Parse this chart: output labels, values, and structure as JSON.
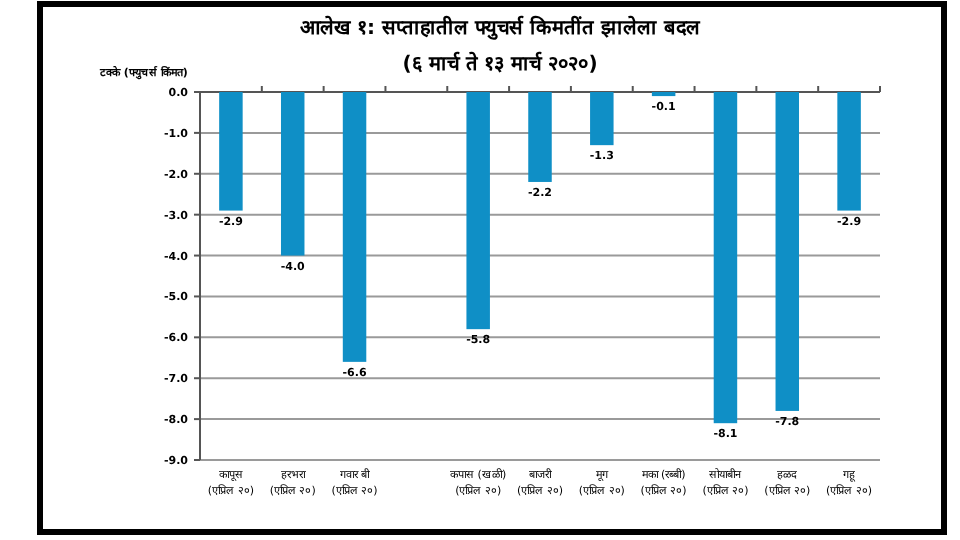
{
  "chart_data": {
    "type": "bar",
    "title": "आलेख १: सप्ताहातील फ्युचर्स किमतींत झालेला बदल",
    "subtitle": "(६ मार्च ते १३ मार्च २०२०)",
    "ylabel": "टक्के (फ्युचर्स किंमत)",
    "categories": [
      "कापूस\n(एप्रिल २०)",
      "हरभरा\n(एप्रिल २०)",
      "गवार बी\n(एप्रिल २०)",
      null,
      "कपास (खळी)\n(एप्रिल २०)",
      "बाजरी\n(एप्रिल २०)",
      "मूग\n(एप्रिल २०)",
      "मका (रब्बी)\n(एप्रिल २०)",
      "सोयाबीन\n(एप्रिल २०)",
      "हळद\n(एप्रिल २०)",
      "गहू\n(एप्रिल २०)"
    ],
    "values": [
      -2.9,
      -4.0,
      -6.6,
      null,
      -5.8,
      -2.2,
      -1.3,
      -0.1,
      -8.1,
      -7.8,
      -2.9
    ],
    "value_labels": [
      "-2.9",
      "-4.0",
      "-6.6",
      null,
      "-5.8",
      "-2.2",
      "-1.3",
      "-0.1",
      "-8.1",
      "-7.8",
      "-2.9"
    ],
    "color": "#0f8fc6",
    "ylim": [
      -9,
      0
    ],
    "yticks": [
      {
        "value": 0,
        "label": "0.0"
      },
      {
        "value": -1,
        "label": "-1.0"
      },
      {
        "value": -2,
        "label": "-2.0"
      },
      {
        "value": -3,
        "label": "-3.0"
      },
      {
        "value": -4,
        "label": "-4.0"
      },
      {
        "value": -5,
        "label": "-5.0"
      },
      {
        "value": -6,
        "label": "-6.0"
      },
      {
        "value": -7,
        "label": "-7.0"
      },
      {
        "value": -8,
        "label": "-8.0"
      },
      {
        "value": -9,
        "label": "-9.0"
      }
    ],
    "grid": "y"
  }
}
